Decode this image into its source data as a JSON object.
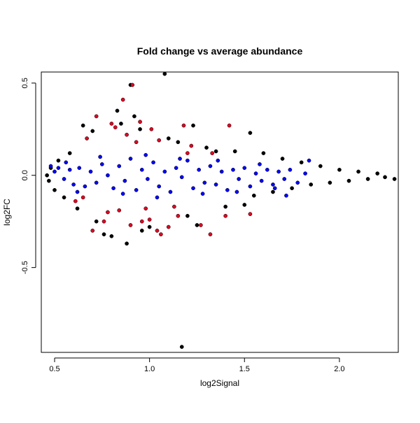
{
  "chart_data": {
    "type": "scatter",
    "title": "Fold change vs average abundance",
    "xlabel": "log2Signal",
    "ylabel": "log2FC",
    "xlim": [
      0.43,
      2.31
    ],
    "ylim": [
      -0.96,
      0.56
    ],
    "x_ticks": [
      0.5,
      1.0,
      1.5,
      2.0
    ],
    "x_tick_labels": [
      "0.5",
      "1.0",
      "1.5",
      "2.0"
    ],
    "y_ticks": [
      -0.5,
      0.0,
      0.5
    ],
    "y_tick_labels": [
      "-0.5",
      "0.0",
      "0.5"
    ],
    "legend": "none",
    "grid": false,
    "colors": {
      "other": "#000000",
      "red_group": "#e00020",
      "blue_group": "#0000ff"
    },
    "series": [
      {
        "color": "#000000",
        "points": [
          [
            1.08,
            0.55
          ],
          [
            0.9,
            0.49
          ],
          [
            1.23,
            0.27
          ],
          [
            1.53,
            0.23
          ],
          [
            1.17,
            -0.93
          ],
          [
            0.88,
            -0.37
          ],
          [
            0.8,
            -0.33
          ],
          [
            0.76,
            -0.32
          ],
          [
            0.83,
            0.35
          ],
          [
            0.92,
            0.32
          ],
          [
            0.65,
            0.27
          ],
          [
            0.7,
            0.24
          ],
          [
            1.1,
            0.2
          ],
          [
            1.3,
            0.15
          ],
          [
            1.45,
            0.13
          ],
          [
            1.6,
            0.12
          ],
          [
            1.7,
            0.09
          ],
          [
            1.8,
            0.07
          ],
          [
            1.9,
            0.05
          ],
          [
            2.0,
            0.03
          ],
          [
            2.1,
            0.02
          ],
          [
            2.2,
            0.01
          ],
          [
            2.29,
            -0.02
          ],
          [
            2.24,
            -0.01
          ],
          [
            2.15,
            -0.02
          ],
          [
            1.5,
            -0.16
          ],
          [
            1.4,
            -0.17
          ],
          [
            1.0,
            -0.28
          ],
          [
            0.96,
            -0.3
          ],
          [
            0.72,
            -0.25
          ],
          [
            0.62,
            -0.18
          ],
          [
            0.55,
            -0.12
          ],
          [
            0.5,
            -0.08
          ],
          [
            0.47,
            -0.03
          ],
          [
            0.46,
            0.0
          ],
          [
            0.48,
            0.04
          ],
          [
            0.52,
            0.08
          ],
          [
            0.58,
            0.12
          ],
          [
            1.2,
            -0.22
          ],
          [
            1.25,
            -0.27
          ],
          [
            0.85,
            0.28
          ],
          [
            0.95,
            0.25
          ],
          [
            1.15,
            0.18
          ],
          [
            1.35,
            0.13
          ],
          [
            1.75,
            -0.07
          ],
          [
            1.85,
            -0.05
          ],
          [
            1.95,
            -0.04
          ],
          [
            2.05,
            -0.03
          ],
          [
            1.65,
            -0.09
          ],
          [
            1.55,
            -0.11
          ]
        ]
      },
      {
        "color": "#e00020",
        "points": [
          [
            0.91,
            0.49
          ],
          [
            0.86,
            0.41
          ],
          [
            0.72,
            0.32
          ],
          [
            0.8,
            0.28
          ],
          [
            0.95,
            0.29
          ],
          [
            1.01,
            0.25
          ],
          [
            1.18,
            0.27
          ],
          [
            1.42,
            0.27
          ],
          [
            0.88,
            0.22
          ],
          [
            1.05,
            0.19
          ],
          [
            1.22,
            0.16
          ],
          [
            1.33,
            0.12
          ],
          [
            0.93,
            0.18
          ],
          [
            0.78,
            -0.2
          ],
          [
            0.9,
            -0.27
          ],
          [
            0.96,
            -0.25
          ],
          [
            1.0,
            -0.24
          ],
          [
            1.04,
            -0.3
          ],
          [
            1.06,
            -0.32
          ],
          [
            1.1,
            -0.28
          ],
          [
            1.15,
            -0.22
          ],
          [
            1.27,
            -0.27
          ],
          [
            1.32,
            -0.32
          ],
          [
            1.4,
            -0.22
          ],
          [
            1.53,
            -0.21
          ],
          [
            0.7,
            -0.3
          ],
          [
            0.76,
            -0.25
          ],
          [
            0.84,
            -0.19
          ],
          [
            0.98,
            -0.18
          ],
          [
            1.13,
            -0.17
          ],
          [
            0.61,
            -0.14
          ],
          [
            0.65,
            -0.12
          ],
          [
            1.2,
            0.12
          ],
          [
            0.67,
            0.2
          ],
          [
            0.82,
            0.26
          ]
        ]
      },
      {
        "color": "#0000ff",
        "points": [
          [
            0.48,
            0.05
          ],
          [
            0.5,
            0.02
          ],
          [
            0.52,
            0.04
          ],
          [
            0.55,
            -0.02
          ],
          [
            0.58,
            0.03
          ],
          [
            0.6,
            -0.05
          ],
          [
            0.63,
            0.04
          ],
          [
            0.66,
            -0.06
          ],
          [
            0.69,
            0.02
          ],
          [
            0.72,
            -0.04
          ],
          [
            0.75,
            0.06
          ],
          [
            0.78,
            0.0
          ],
          [
            0.81,
            -0.07
          ],
          [
            0.84,
            0.05
          ],
          [
            0.87,
            -0.03
          ],
          [
            0.9,
            0.09
          ],
          [
            0.93,
            -0.08
          ],
          [
            0.96,
            0.03
          ],
          [
            0.99,
            -0.02
          ],
          [
            1.02,
            0.07
          ],
          [
            1.05,
            -0.06
          ],
          [
            1.08,
            0.02
          ],
          [
            1.11,
            -0.09
          ],
          [
            1.14,
            0.04
          ],
          [
            1.17,
            -0.01
          ],
          [
            1.2,
            0.08
          ],
          [
            1.23,
            -0.07
          ],
          [
            1.26,
            0.03
          ],
          [
            1.29,
            -0.04
          ],
          [
            1.32,
            0.05
          ],
          [
            1.35,
            -0.05
          ],
          [
            1.38,
            0.02
          ],
          [
            1.41,
            -0.08
          ],
          [
            1.44,
            0.03
          ],
          [
            1.47,
            -0.02
          ],
          [
            1.5,
            0.04
          ],
          [
            1.53,
            -0.06
          ],
          [
            1.56,
            0.01
          ],
          [
            1.59,
            -0.03
          ],
          [
            1.62,
            0.03
          ],
          [
            1.65,
            -0.05
          ],
          [
            1.68,
            0.02
          ],
          [
            1.71,
            -0.02
          ],
          [
            1.74,
            0.03
          ],
          [
            1.78,
            -0.04
          ],
          [
            1.82,
            0.01
          ],
          [
            1.84,
            0.08
          ],
          [
            0.56,
            0.07
          ],
          [
            0.62,
            -0.09
          ],
          [
            0.74,
            0.1
          ],
          [
            0.86,
            -0.1
          ],
          [
            0.98,
            0.11
          ],
          [
            1.04,
            -0.12
          ],
          [
            1.16,
            0.09
          ],
          [
            1.28,
            -0.1
          ],
          [
            1.36,
            0.08
          ],
          [
            1.46,
            -0.09
          ],
          [
            1.58,
            0.06
          ],
          [
            1.66,
            -0.07
          ],
          [
            1.72,
            -0.11
          ]
        ]
      }
    ]
  }
}
